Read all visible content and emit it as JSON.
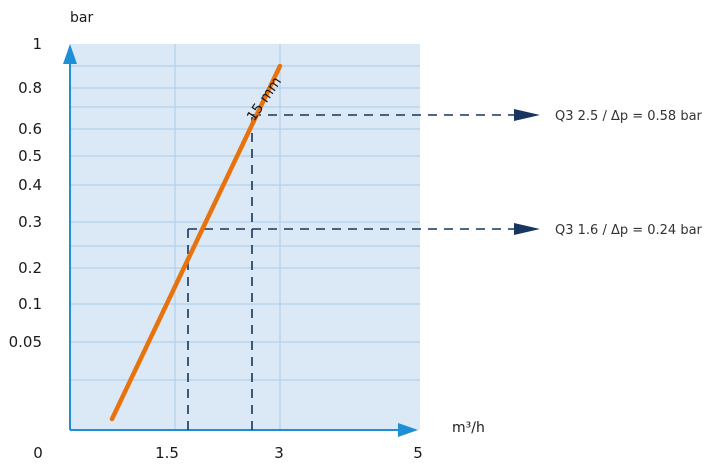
{
  "chart_data": {
    "type": "line",
    "y_unit": "bar",
    "x_unit": "m³/h",
    "x_ticks": [
      "0",
      "1.5",
      "3",
      "5"
    ],
    "y_ticks": [
      "1",
      "0.8",
      "0.6",
      "0.5",
      "0.4",
      "0.3",
      "0.2",
      "0.1",
      "0.05"
    ],
    "series": [
      {
        "name": "15 mm",
        "color": "#e8720c",
        "points": [
          {
            "x": 0.6,
            "y": 0.0
          },
          {
            "x": 3.0,
            "y": 0.9
          }
        ]
      }
    ],
    "annotations": [
      {
        "label": "Q3 2.5 / Δp = 0.58 bar",
        "x": 2.6,
        "y": 0.58
      },
      {
        "label": "Q3 1.6 / Δp = 0.24 bar",
        "x": 1.8,
        "y": 0.24
      }
    ],
    "colors": {
      "plot_bg": "#dbe8f6",
      "grid": "#a9cdea",
      "axis_arrow": "#1e8fd6",
      "annotation_line": "#17355e",
      "curve": "#e8720c"
    }
  }
}
